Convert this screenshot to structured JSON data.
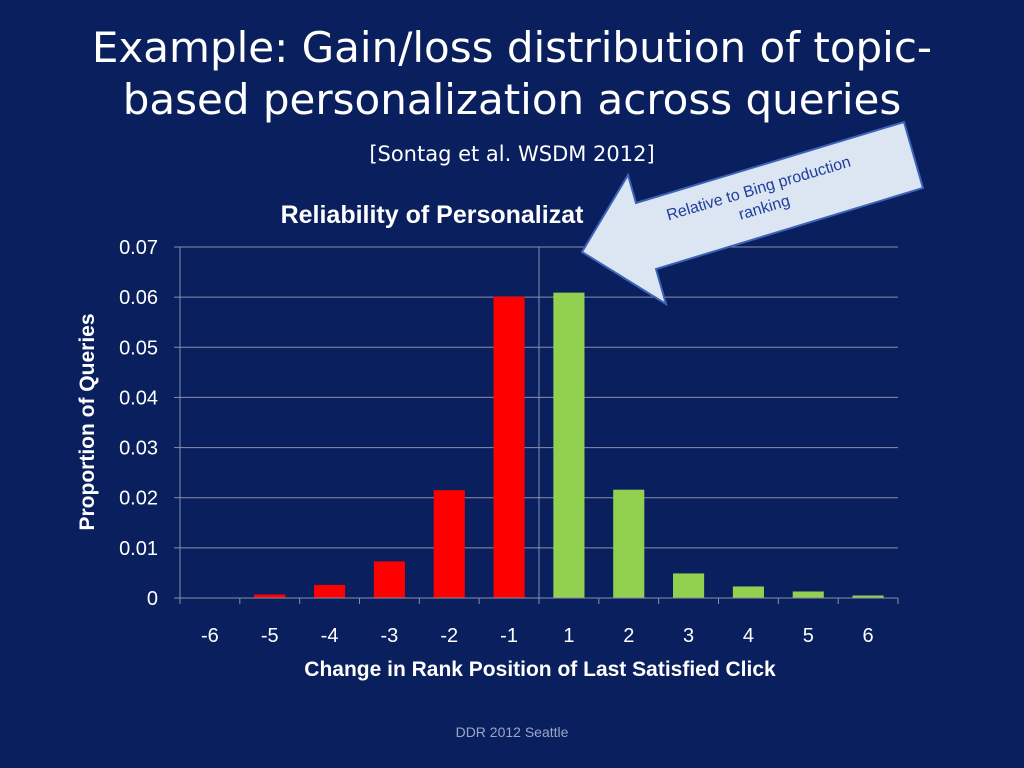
{
  "slide": {
    "title_line1": "Example: Gain/loss distribution of topic-",
    "title_line2": "based personalization across queries",
    "subtitle": "[Sontag et al. WSDM 2012]",
    "footer": "DDR 2012 Seattle"
  },
  "callout": {
    "line1": "Relative to Bing production",
    "line2": "ranking"
  },
  "colors": {
    "background": "#0a1f5e",
    "loss": "#ff0000",
    "gain": "#92d050",
    "grid": "#8a8fa8",
    "callout_fill": "#dce6f2",
    "callout_text": "#1f3e9e"
  },
  "chart_data": {
    "type": "bar",
    "title": "Reliability of Personalizat",
    "xlabel": "Change in Rank Position of Last Satisfied Click",
    "ylabel": "Proportion of Queries",
    "categories": [
      "-6",
      "-5",
      "-4",
      "-3",
      "-2",
      "-1",
      "1",
      "2",
      "3",
      "4",
      "5",
      "6"
    ],
    "values": [
      0,
      0.0007,
      0.0026,
      0.0073,
      0.0215,
      0.0601,
      0.0609,
      0.0216,
      0.0049,
      0.0023,
      0.0013,
      0.0005
    ],
    "ylim": [
      0,
      0.07
    ],
    "yticks": [
      "0",
      "0.01",
      "0.02",
      "0.03",
      "0.04",
      "0.05",
      "0.06",
      "0.07"
    ],
    "ytick_values": [
      0,
      0.01,
      0.02,
      0.03,
      0.04,
      0.05,
      0.06,
      0.07
    ],
    "grid": true,
    "legend": "none"
  }
}
